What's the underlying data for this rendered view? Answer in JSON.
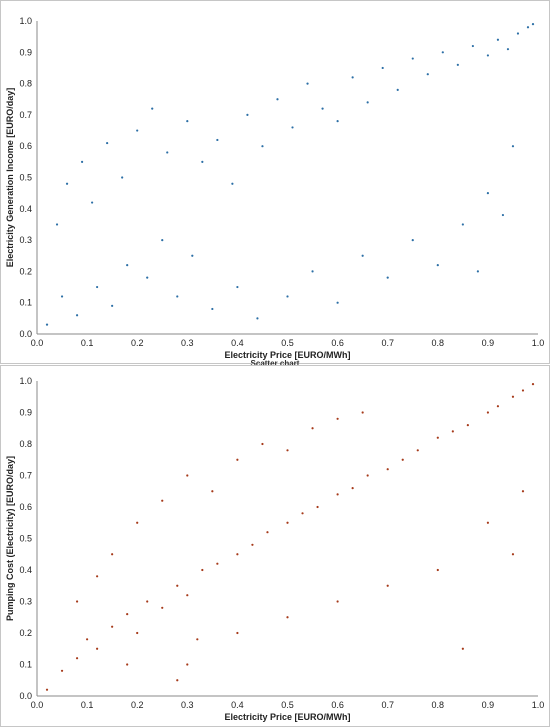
{
  "caption": "Scatter chart",
  "chart_data": [
    {
      "type": "scatter",
      "xlabel": "Electricity Price [EURO/MWh]",
      "ylabel": "Electricity Generation Income [EURO/day]",
      "xlim": [
        0,
        1
      ],
      "ylim": [
        0,
        1
      ],
      "x_ticks": [
        "0.0",
        "0.1",
        "0.2",
        "0.3",
        "0.4",
        "0.5",
        "0.6",
        "0.7",
        "0.8",
        "0.9",
        "1.0"
      ],
      "y_ticks": [
        "0.0",
        "0.1",
        "0.2",
        "0.3",
        "0.4",
        "0.5",
        "0.6",
        "0.7",
        "0.8",
        "0.9",
        "1.0"
      ],
      "grid": false,
      "marker_color": "#2c6fa6",
      "points": [
        [
          0.02,
          0.03
        ],
        [
          0.05,
          0.12
        ],
        [
          0.08,
          0.06
        ],
        [
          0.12,
          0.15
        ],
        [
          0.15,
          0.09
        ],
        [
          0.18,
          0.22
        ],
        [
          0.22,
          0.18
        ],
        [
          0.25,
          0.3
        ],
        [
          0.28,
          0.12
        ],
        [
          0.31,
          0.25
        ],
        [
          0.04,
          0.35
        ],
        [
          0.06,
          0.48
        ],
        [
          0.09,
          0.55
        ],
        [
          0.11,
          0.42
        ],
        [
          0.14,
          0.61
        ],
        [
          0.17,
          0.5
        ],
        [
          0.2,
          0.65
        ],
        [
          0.23,
          0.72
        ],
        [
          0.26,
          0.58
        ],
        [
          0.3,
          0.68
        ],
        [
          0.33,
          0.55
        ],
        [
          0.36,
          0.62
        ],
        [
          0.39,
          0.48
        ],
        [
          0.42,
          0.7
        ],
        [
          0.45,
          0.6
        ],
        [
          0.48,
          0.75
        ],
        [
          0.51,
          0.66
        ],
        [
          0.54,
          0.8
        ],
        [
          0.57,
          0.72
        ],
        [
          0.6,
          0.68
        ],
        [
          0.63,
          0.82
        ],
        [
          0.66,
          0.74
        ],
        [
          0.69,
          0.85
        ],
        [
          0.72,
          0.78
        ],
        [
          0.75,
          0.88
        ],
        [
          0.78,
          0.83
        ],
        [
          0.81,
          0.9
        ],
        [
          0.84,
          0.86
        ],
        [
          0.87,
          0.92
        ],
        [
          0.9,
          0.89
        ],
        [
          0.92,
          0.94
        ],
        [
          0.94,
          0.91
        ],
        [
          0.96,
          0.96
        ],
        [
          0.98,
          0.98
        ],
        [
          0.99,
          0.99
        ],
        [
          0.35,
          0.08
        ],
        [
          0.4,
          0.15
        ],
        [
          0.44,
          0.05
        ],
        [
          0.5,
          0.12
        ],
        [
          0.55,
          0.2
        ],
        [
          0.6,
          0.1
        ],
        [
          0.65,
          0.25
        ],
        [
          0.7,
          0.18
        ],
        [
          0.75,
          0.3
        ],
        [
          0.8,
          0.22
        ],
        [
          0.85,
          0.35
        ],
        [
          0.88,
          0.2
        ],
        [
          0.9,
          0.45
        ],
        [
          0.93,
          0.38
        ],
        [
          0.95,
          0.6
        ]
      ]
    },
    {
      "type": "scatter",
      "xlabel": "Electricity Price [EURO/MWh]",
      "ylabel": "Pumping Cost (Electricity) [EURO/day]",
      "xlim": [
        0,
        1
      ],
      "ylim": [
        0,
        1
      ],
      "x_ticks": [
        "0.0",
        "0.1",
        "0.2",
        "0.3",
        "0.4",
        "0.5",
        "0.6",
        "0.7",
        "0.8",
        "0.9",
        "1.0"
      ],
      "y_ticks": [
        "0.0",
        "0.1",
        "0.2",
        "0.3",
        "0.4",
        "0.5",
        "0.6",
        "0.7",
        "0.8",
        "0.9",
        "1.0"
      ],
      "grid": false,
      "marker_color": "#a63a1a",
      "points": [
        [
          0.02,
          0.02
        ],
        [
          0.05,
          0.08
        ],
        [
          0.08,
          0.12
        ],
        [
          0.1,
          0.18
        ],
        [
          0.12,
          0.15
        ],
        [
          0.15,
          0.22
        ],
        [
          0.18,
          0.26
        ],
        [
          0.2,
          0.2
        ],
        [
          0.22,
          0.3
        ],
        [
          0.25,
          0.28
        ],
        [
          0.28,
          0.35
        ],
        [
          0.3,
          0.32
        ],
        [
          0.33,
          0.4
        ],
        [
          0.36,
          0.42
        ],
        [
          0.4,
          0.45
        ],
        [
          0.43,
          0.48
        ],
        [
          0.46,
          0.52
        ],
        [
          0.5,
          0.55
        ],
        [
          0.53,
          0.58
        ],
        [
          0.56,
          0.6
        ],
        [
          0.6,
          0.64
        ],
        [
          0.63,
          0.66
        ],
        [
          0.66,
          0.7
        ],
        [
          0.7,
          0.72
        ],
        [
          0.73,
          0.75
        ],
        [
          0.76,
          0.78
        ],
        [
          0.8,
          0.82
        ],
        [
          0.83,
          0.84
        ],
        [
          0.86,
          0.86
        ],
        [
          0.9,
          0.9
        ],
        [
          0.92,
          0.92
        ],
        [
          0.95,
          0.95
        ],
        [
          0.97,
          0.97
        ],
        [
          0.99,
          0.99
        ],
        [
          0.15,
          0.45
        ],
        [
          0.2,
          0.55
        ],
        [
          0.25,
          0.62
        ],
        [
          0.3,
          0.7
        ],
        [
          0.35,
          0.65
        ],
        [
          0.4,
          0.75
        ],
        [
          0.45,
          0.8
        ],
        [
          0.5,
          0.78
        ],
        [
          0.55,
          0.85
        ],
        [
          0.6,
          0.88
        ],
        [
          0.65,
          0.9
        ],
        [
          0.3,
          0.1
        ],
        [
          0.4,
          0.2
        ],
        [
          0.5,
          0.25
        ],
        [
          0.6,
          0.3
        ],
        [
          0.7,
          0.35
        ],
        [
          0.8,
          0.4
        ],
        [
          0.85,
          0.15
        ],
        [
          0.9,
          0.55
        ],
        [
          0.95,
          0.45
        ],
        [
          0.97,
          0.65
        ],
        [
          0.08,
          0.3
        ],
        [
          0.12,
          0.38
        ],
        [
          0.18,
          0.1
        ],
        [
          0.28,
          0.05
        ],
        [
          0.32,
          0.18
        ]
      ]
    }
  ]
}
